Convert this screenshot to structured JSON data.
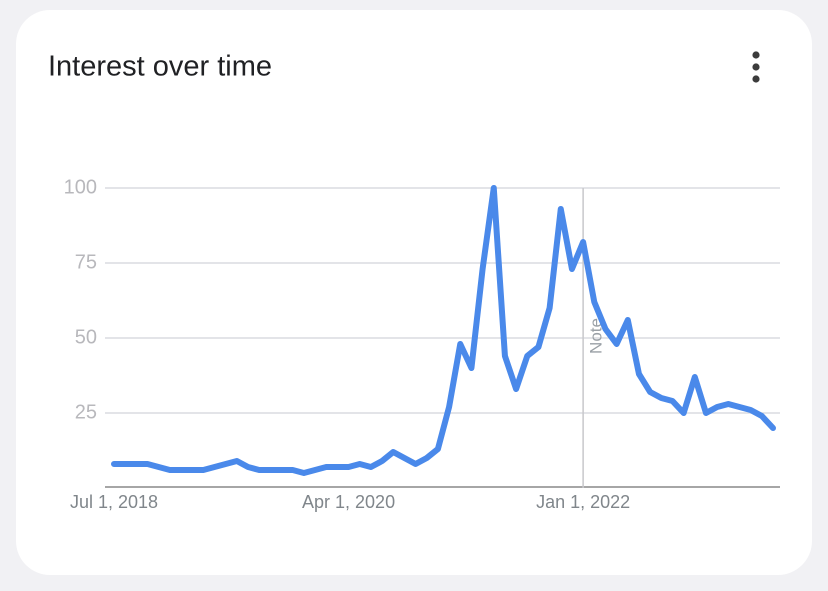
{
  "chart_data": {
    "type": "line",
    "title": "Interest over time",
    "categories": [
      "Jul 1, 2018",
      null,
      null,
      null,
      null,
      null,
      null,
      null,
      null,
      null,
      null,
      null,
      null,
      null,
      null,
      null,
      null,
      null,
      null,
      null,
      null,
      "Apr 1, 2020",
      null,
      null,
      null,
      null,
      null,
      null,
      null,
      null,
      null,
      null,
      null,
      null,
      null,
      null,
      null,
      null,
      null,
      null,
      null,
      null,
      "Jan 1, 2022",
      null,
      null,
      null,
      null,
      null,
      null,
      null,
      null,
      null,
      null,
      null,
      null,
      null,
      null,
      null,
      null,
      null
    ],
    "series": [
      {
        "color": "#4a89ea",
        "values": [
          8,
          8,
          8,
          8,
          7,
          6,
          6,
          6,
          6,
          7,
          8,
          9,
          7,
          6,
          6,
          6,
          6,
          5,
          6,
          7,
          7,
          7,
          8,
          7,
          9,
          12,
          10,
          8,
          10,
          13,
          27,
          48,
          40,
          73,
          100,
          44,
          33,
          44,
          47,
          60,
          93,
          73,
          82,
          62,
          53,
          48,
          56,
          38,
          32,
          30,
          29,
          25,
          37,
          25,
          27,
          28,
          27,
          26,
          24,
          20
        ]
      }
    ],
    "ylim": [
      0,
      100
    ],
    "yticks": [
      25,
      50,
      75,
      100
    ],
    "grid": true,
    "annotation": {
      "label": "Note",
      "category": "Jan 1, 2022"
    }
  }
}
